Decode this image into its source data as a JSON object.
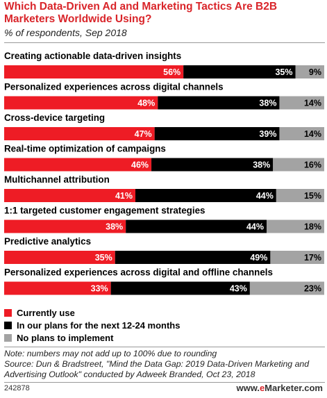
{
  "header": {
    "title": "Which Data-Driven Ad and Marketing Tactics Are B2B Marketers Worldwide Using?",
    "subtitle": "% of respondents, Sep 2018"
  },
  "colors": {
    "currently_use": "#ee1c25",
    "in_plans": "#000000",
    "no_plans": "#a3a3a3",
    "title": "#d9252a"
  },
  "chart_data": {
    "type": "bar",
    "orientation": "horizontal",
    "stacked": true,
    "categories": [
      "Creating actionable data-driven insights",
      "Personalized experiences across digital channels",
      "Cross-device targeting",
      "Real-time optimization of campaigns",
      "Multichannel attribution",
      "1:1 targeted customer engagement strategies",
      "Predictive analytics",
      "Personalized experiences across digital and offline channels"
    ],
    "series": [
      {
        "name": "Currently use",
        "values": [
          56,
          48,
          47,
          46,
          41,
          38,
          35,
          33
        ]
      },
      {
        "name": "In our plans for the next 12-24 months",
        "values": [
          35,
          38,
          39,
          38,
          44,
          44,
          49,
          43
        ]
      },
      {
        "name": "No plans to implement",
        "values": [
          9,
          14,
          14,
          16,
          15,
          18,
          17,
          23
        ]
      }
    ],
    "value_suffix": "%",
    "legend_position": "bottom-left",
    "grid": false
  },
  "legend": {
    "items": [
      {
        "label": "Currently use"
      },
      {
        "label": "In our plans for the next 12-24 months"
      },
      {
        "label": "No plans to implement"
      }
    ]
  },
  "footer": {
    "note": "Note: numbers may not add up to 100% due to rounding",
    "source": "Source: Dun & Bradstreet, \"Mind the Data Gap: 2019 Data-Driven Marketing and Advertising Outlook\" conducted by Adweek Branded, Oct 23, 2018",
    "chart_id": "242878",
    "brand_prefix": "www.",
    "brand_e": "e",
    "brand_suffix": "Marketer.com"
  }
}
